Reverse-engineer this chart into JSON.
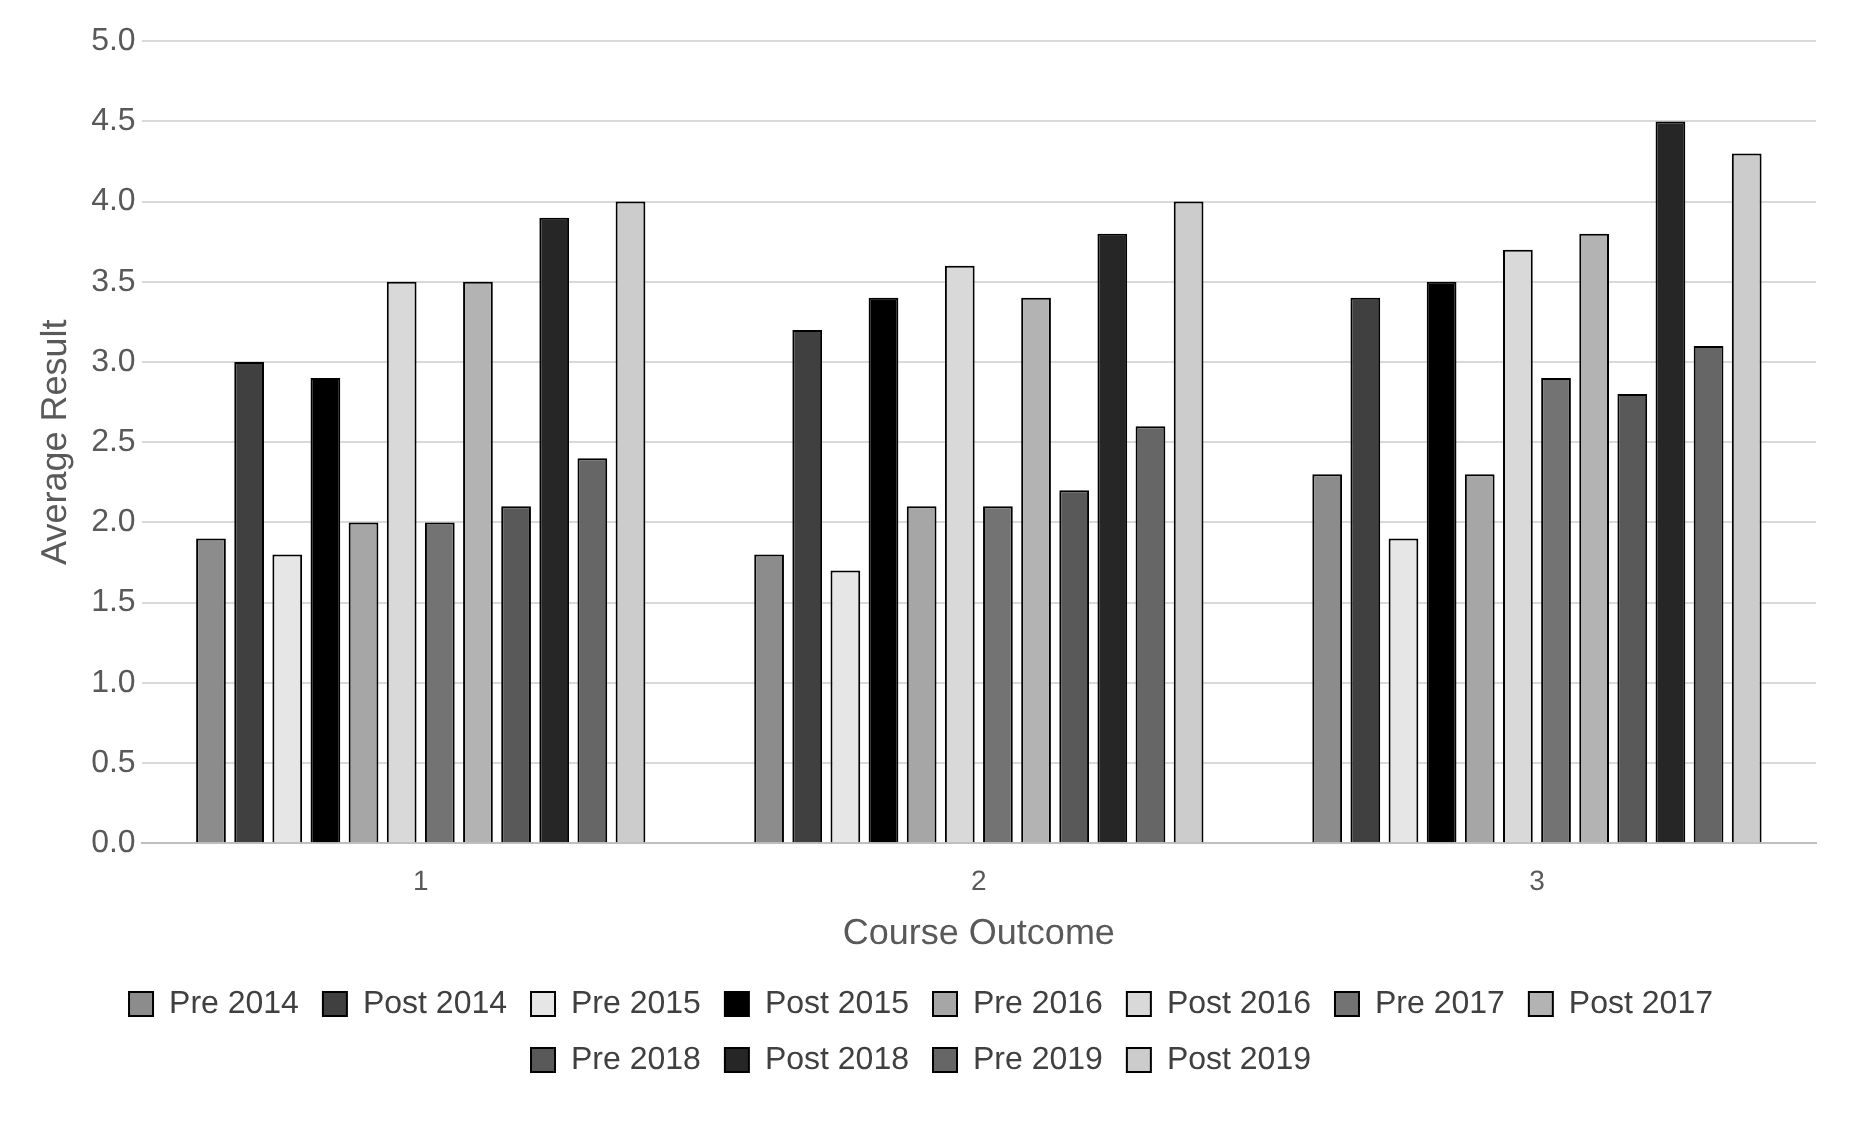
{
  "chart_data": {
    "type": "bar",
    "xlabel": "Course Outcome",
    "ylabel": "Average Result",
    "categories": [
      "1",
      "2",
      "3"
    ],
    "ylim": [
      0,
      5
    ],
    "yticks": [
      {
        "value": 0,
        "label": "0.0"
      },
      {
        "value": 0.5,
        "label": "0.5"
      },
      {
        "value": 1,
        "label": "1.0"
      },
      {
        "value": 1.5,
        "label": "1.5"
      },
      {
        "value": 2,
        "label": "2.0"
      },
      {
        "value": 2.5,
        "label": "2.5"
      },
      {
        "value": 3,
        "label": "3.0"
      },
      {
        "value": 3.5,
        "label": "3.5"
      },
      {
        "value": 4,
        "label": "4.0"
      },
      {
        "value": 4.5,
        "label": "4.5"
      },
      {
        "value": 5,
        "label": "5.0"
      }
    ],
    "grid": "y",
    "legend": "bottom",
    "series": [
      {
        "name": "Pre 2014",
        "color": "#8c8c8c",
        "values": [
          1.9,
          1.8,
          2.3
        ]
      },
      {
        "name": "Post 2014",
        "color": "#404040",
        "values": [
          3.0,
          3.2,
          3.4
        ]
      },
      {
        "name": "Pre 2015",
        "color": "#e6e6e6",
        "values": [
          1.8,
          1.7,
          1.9
        ]
      },
      {
        "name": "Post 2015",
        "color": "#000000",
        "values": [
          2.9,
          3.4,
          3.5
        ]
      },
      {
        "name": "Pre 2016",
        "color": "#a6a6a6",
        "values": [
          2.0,
          2.1,
          2.3
        ]
      },
      {
        "name": "Post 2016",
        "color": "#d9d9d9",
        "values": [
          3.5,
          3.6,
          3.7
        ]
      },
      {
        "name": "Pre 2017",
        "color": "#737373",
        "values": [
          2.0,
          2.1,
          2.9
        ]
      },
      {
        "name": "Post 2017",
        "color": "#b3b3b3",
        "values": [
          3.5,
          3.4,
          3.8
        ]
      },
      {
        "name": "Pre 2018",
        "color": "#595959",
        "values": [
          2.1,
          2.2,
          2.8
        ]
      },
      {
        "name": "Post 2018",
        "color": "#262626",
        "values": [
          3.9,
          3.8,
          4.5
        ]
      },
      {
        "name": "Pre 2019",
        "color": "#666666",
        "values": [
          2.4,
          2.6,
          3.1
        ]
      },
      {
        "name": "Post 2019",
        "color": "#cccccc",
        "values": [
          4.0,
          4.0,
          4.3
        ]
      }
    ]
  }
}
